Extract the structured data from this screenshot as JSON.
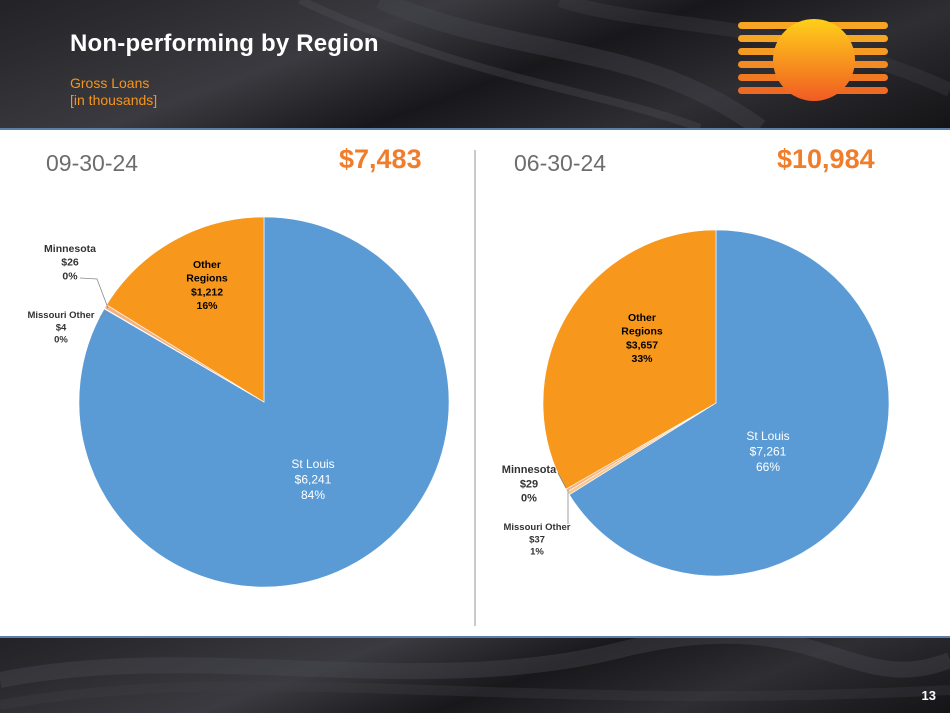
{
  "header": {
    "title": "Non-performing by Region",
    "subtitle_line1": "Gross Loans",
    "subtitle_line2": "[in thousands]"
  },
  "footer": {
    "page_number": "13"
  },
  "colors": {
    "st_louis": "#5b9bd5",
    "other_regions": "#f7981c",
    "minnesota": "#f4b183",
    "missouri_other": "#f8c98f",
    "accent": "#f07d2a"
  },
  "chart_data": [
    {
      "type": "pie",
      "date": "09-30-24",
      "total": "$7,483",
      "slices": [
        {
          "name": "St Louis",
          "value": 6241,
          "value_label": "$6,241",
          "percent_label": "84%",
          "color": "#5b9bd5"
        },
        {
          "name": "Missouri Other",
          "value": 4,
          "value_label": "$4",
          "percent_label": "0%",
          "color": "#f8c98f"
        },
        {
          "name": "Minnesota",
          "value": 26,
          "value_label": "$26",
          "percent_label": "0%",
          "color": "#f4b183"
        },
        {
          "name": "Other Regions",
          "value": 1212,
          "value_label": "$1,212",
          "percent_label": "16%",
          "color": "#f7981c"
        }
      ]
    },
    {
      "type": "pie",
      "date": "06-30-24",
      "total": "$10,984",
      "slices": [
        {
          "name": "St Louis",
          "value": 7261,
          "value_label": "$7,261",
          "percent_label": "66%",
          "color": "#5b9bd5"
        },
        {
          "name": "Missouri Other",
          "value": 37,
          "value_label": "$37",
          "percent_label": "1%",
          "color": "#f8c98f"
        },
        {
          "name": "Minnesota",
          "value": 29,
          "value_label": "$29",
          "percent_label": "0%",
          "color": "#f4b183"
        },
        {
          "name": "Other Regions",
          "value": 3657,
          "value_label": "$3,657",
          "percent_label": "33%",
          "color": "#f7981c"
        }
      ]
    }
  ]
}
